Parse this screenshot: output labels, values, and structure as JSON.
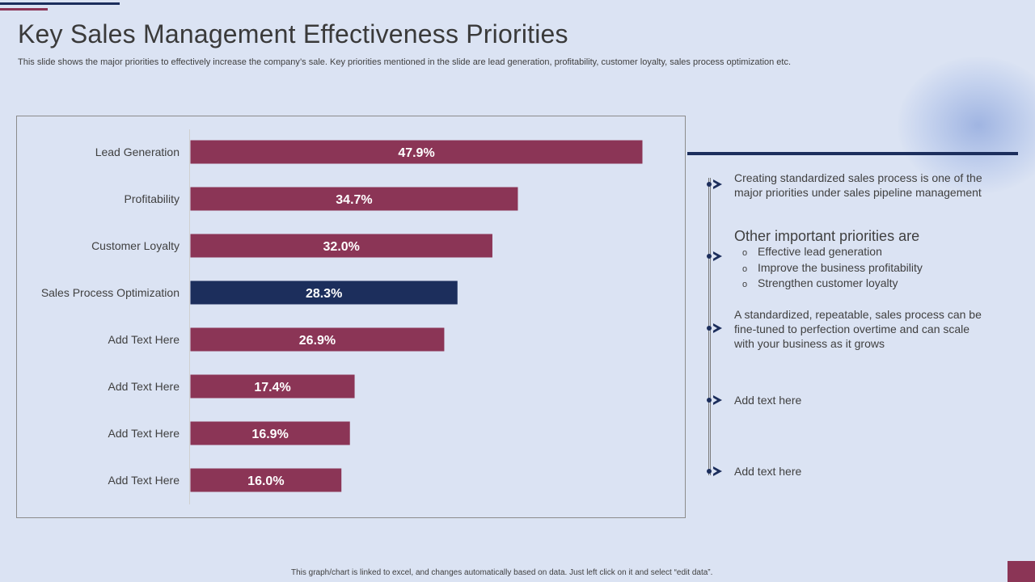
{
  "title": "Key Sales Management Effectiveness Priorities",
  "subtitle": "This slide shows the major priorities to effectively increase the company’s sale. Key priorities mentioned in the slide are lead generation, profitability, customer loyalty, sales process optimization etc.",
  "colors": {
    "background": "#dbe3f3",
    "bar_primary": "#8b3556",
    "bar_highlight": "#1c2e5c",
    "accent_navy": "#1c2e5c"
  },
  "chart_data": {
    "type": "bar",
    "orientation": "horizontal",
    "title": "",
    "xlabel": "",
    "ylabel": "",
    "xlim": [
      0,
      50
    ],
    "grid": false,
    "categories": [
      "Lead Generation",
      "Profitability",
      "Customer Loyalty",
      "Sales Process Optimization",
      "Add Text Here",
      "Add Text Here",
      "Add Text Here",
      "Add Text Here"
    ],
    "values": [
      47.9,
      34.7,
      32.0,
      28.3,
      26.9,
      17.4,
      16.9,
      16.0
    ],
    "data_labels": [
      "47.9%",
      "34.7%",
      "32.0%",
      "28.3%",
      "26.9%",
      "17.4%",
      "16.9%",
      "16.0%"
    ],
    "highlight_index": 3
  },
  "right_panel": {
    "point1": "Creating standardized sales process is one of the major priorities under sales pipeline management",
    "heading": "Other important priorities are",
    "bullets": [
      "Effective lead generation",
      "Improve the business profitability",
      "Strengthen customer loyalty"
    ],
    "bullet_symbol": "o",
    "point3": "A standardized, repeatable, sales process can be fine-tuned to perfection overtime and can scale with your business as it grows",
    "point4": "Add text here",
    "point5": "Add text here"
  },
  "footer": "This graph/chart is linked to excel, and changes automatically based on data. Just left click on it and select “edit data”."
}
